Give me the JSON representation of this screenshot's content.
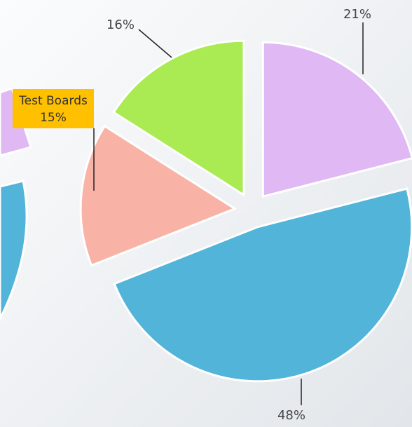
{
  "chart_data": {
    "type": "pie",
    "categories": [
      null,
      null,
      "Test Boards",
      null
    ],
    "values": [
      21,
      48,
      15,
      16
    ],
    "value_labels": [
      "21%",
      "48%",
      "15%",
      "16%"
    ],
    "colors": [
      "#e0b8f4",
      "#52b4d8",
      "#f9b3a6",
      "#aaea52"
    ],
    "highlight_color": "#ffc000"
  }
}
